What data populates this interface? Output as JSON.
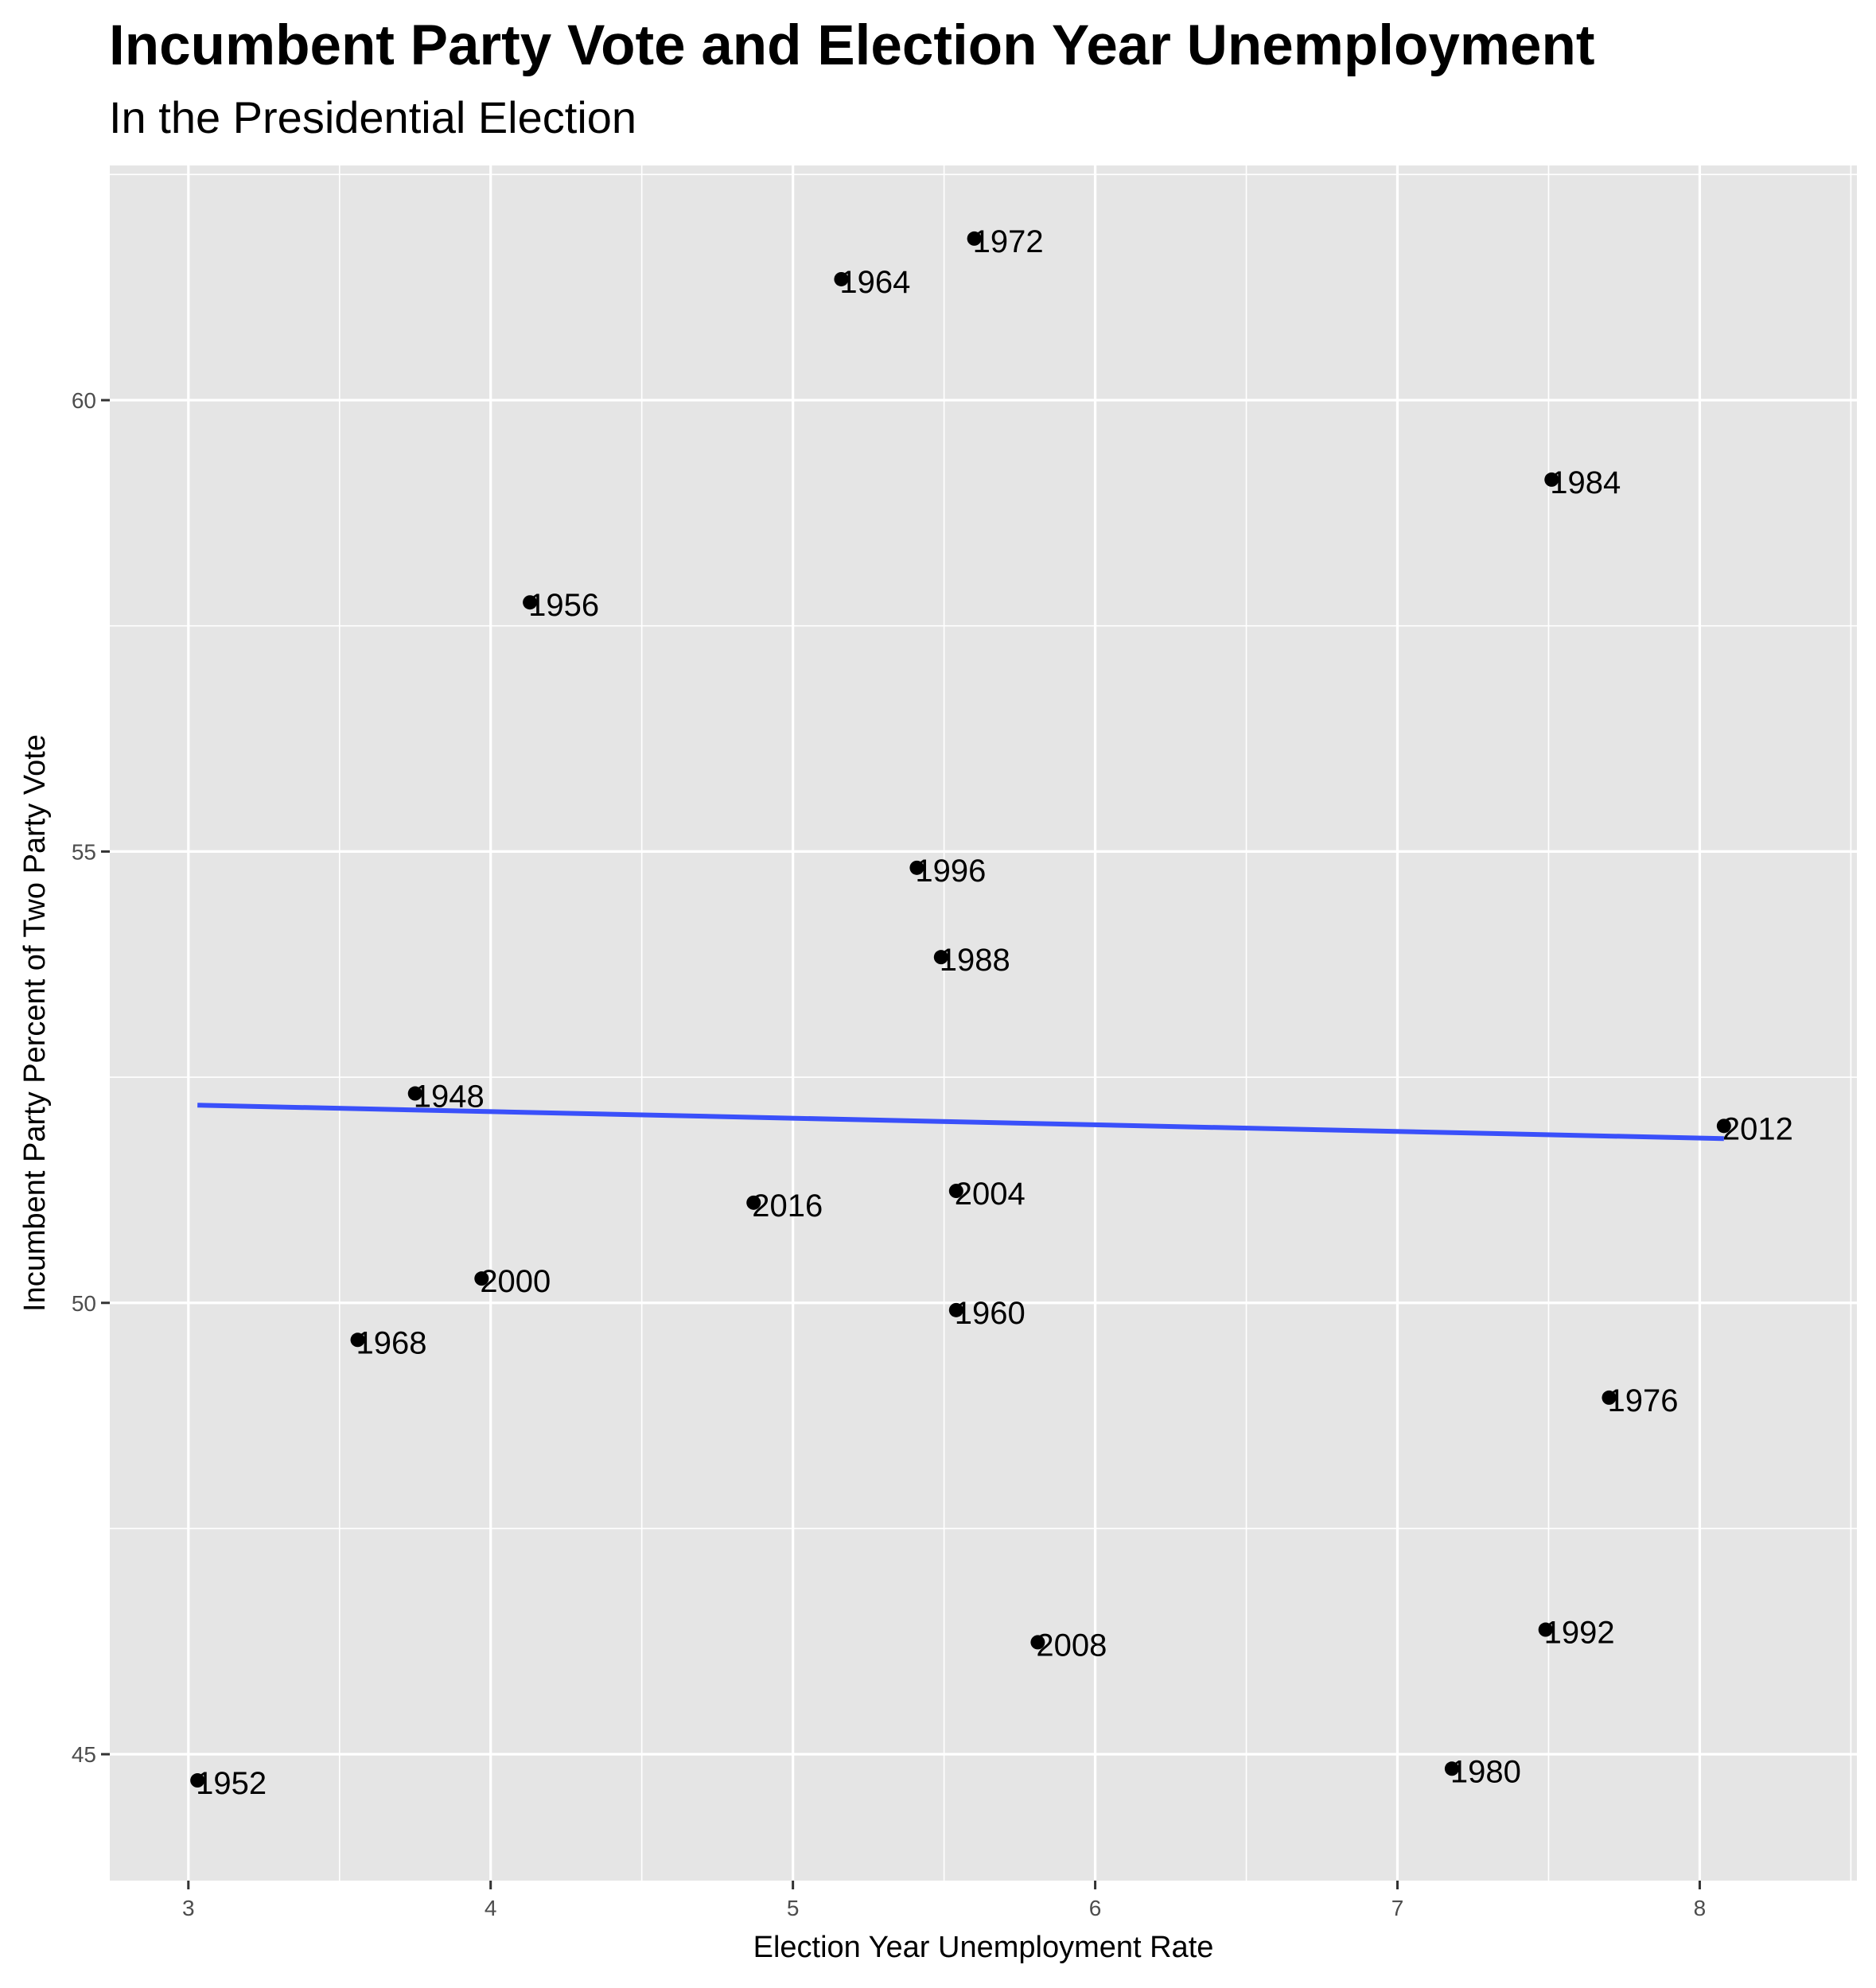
{
  "chart_data": {
    "type": "scatter",
    "title": "Incumbent Party Vote and Election Year Unemployment",
    "subtitle": "In the Presidential Election",
    "xlabel": "Election Year Unemployment Rate",
    "ylabel": "Incumbent Party Percent of Two Party Vote",
    "xlim": [
      2.74,
      8.52
    ],
    "ylim": [
      43.6,
      62.6
    ],
    "x_ticks": [
      3,
      4,
      5,
      6,
      7,
      8
    ],
    "y_ticks": [
      45,
      50,
      55,
      60
    ],
    "grid": true,
    "legend": "none",
    "point_color": "#000000",
    "fit_color": "#3a50fa",
    "background": "#e5e5e5",
    "points": [
      {
        "label": "1948",
        "x": 3.75,
        "y": 52.32
      },
      {
        "label": "1952",
        "x": 3.03,
        "y": 44.71
      },
      {
        "label": "1956",
        "x": 4.13,
        "y": 57.76
      },
      {
        "label": "1960",
        "x": 5.54,
        "y": 49.92
      },
      {
        "label": "1964",
        "x": 5.16,
        "y": 61.34
      },
      {
        "label": "1968",
        "x": 3.56,
        "y": 49.59
      },
      {
        "label": "1972",
        "x": 5.6,
        "y": 61.79
      },
      {
        "label": "1976",
        "x": 7.7,
        "y": 48.95
      },
      {
        "label": "1980",
        "x": 7.18,
        "y": 44.84
      },
      {
        "label": "1984",
        "x": 7.51,
        "y": 59.12
      },
      {
        "label": "1988",
        "x": 5.49,
        "y": 53.83
      },
      {
        "label": "1992",
        "x": 7.49,
        "y": 46.38
      },
      {
        "label": "1996",
        "x": 5.41,
        "y": 54.82
      },
      {
        "label": "2000",
        "x": 3.97,
        "y": 50.27
      },
      {
        "label": "2004",
        "x": 5.54,
        "y": 51.24
      },
      {
        "label": "2008",
        "x": 5.81,
        "y": 46.24
      },
      {
        "label": "2012",
        "x": 8.08,
        "y": 51.96
      },
      {
        "label": "2016",
        "x": 4.87,
        "y": 51.11
      }
    ],
    "fit_line": {
      "x": [
        3.03,
        8.08
      ],
      "y": [
        52.19,
        51.82
      ]
    }
  }
}
